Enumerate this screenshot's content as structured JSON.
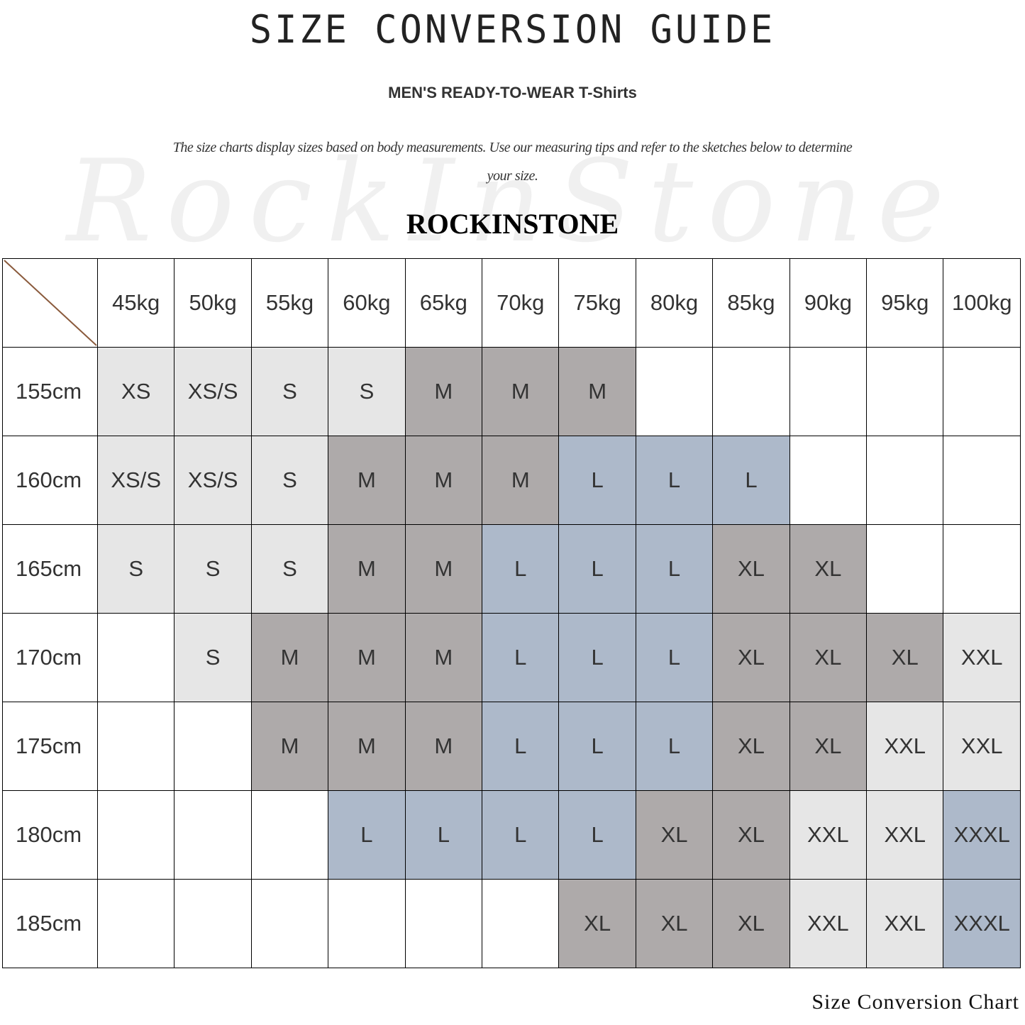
{
  "header": {
    "title": "SIZE CONVERSION GUIDE",
    "subtitle": "MEN'S READY-TO-WEAR T-Shirts",
    "description": "The size charts display sizes based on body measurements. Use our measuring tips and refer to the sketches below to determine your size.",
    "brand": "ROCKINSTONE",
    "watermark": "RockInStone"
  },
  "footer": "Size Conversion Chart",
  "size_colors": {
    "XS": "#e6e6e6",
    "XS/S": "#e6e6e6",
    "S": "#e6e6e6",
    "M": "#aeaaaa",
    "L": "#adb9ca",
    "XL": "#aeaaaa",
    "XXL": "#e6e6e6",
    "XXXL": "#adb9ca",
    "": "#ffffff"
  },
  "chart_data": {
    "type": "table",
    "columns": [
      "45kg",
      "50kg",
      "55kg",
      "60kg",
      "65kg",
      "70kg",
      "75kg",
      "80kg",
      "85kg",
      "90kg",
      "95kg",
      "100kg"
    ],
    "rows": [
      {
        "label": "155cm",
        "cells": [
          "XS",
          "XS/S",
          "S",
          "S",
          "M",
          "M",
          "M",
          "",
          "",
          "",
          "",
          ""
        ]
      },
      {
        "label": "160cm",
        "cells": [
          "XS/S",
          "XS/S",
          "S",
          "M",
          "M",
          "M",
          "L",
          "L",
          "L",
          "",
          "",
          ""
        ]
      },
      {
        "label": "165cm",
        "cells": [
          "S",
          "S",
          "S",
          "M",
          "M",
          "L",
          "L",
          "L",
          "XL",
          "XL",
          "",
          ""
        ]
      },
      {
        "label": "170cm",
        "cells": [
          "",
          "S",
          "M",
          "M",
          "M",
          "L",
          "L",
          "L",
          "XL",
          "XL",
          "XL",
          "XXL"
        ]
      },
      {
        "label": "175cm",
        "cells": [
          "",
          "",
          "M",
          "M",
          "M",
          "L",
          "L",
          "L",
          "XL",
          "XL",
          "XXL",
          "XXL"
        ]
      },
      {
        "label": "180cm",
        "cells": [
          "",
          "",
          "",
          "L",
          "L",
          "L",
          "L",
          "XL",
          "XL",
          "XXL",
          "XXL",
          "XXXL"
        ]
      },
      {
        "label": "185cm",
        "cells": [
          "",
          "",
          "",
          "",
          "",
          "",
          "XL",
          "XL",
          "XL",
          "XXL",
          "XXL",
          "XXXL"
        ]
      }
    ]
  }
}
